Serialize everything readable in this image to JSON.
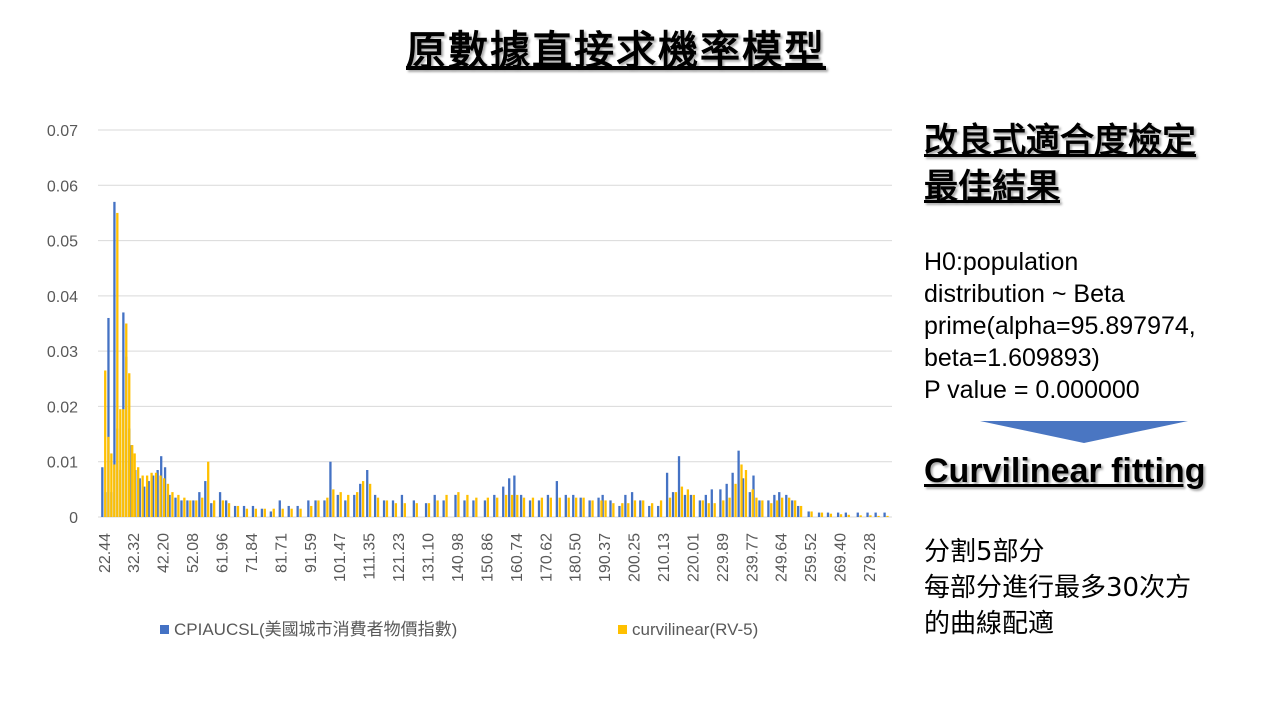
{
  "title": "原數據直接求機率模型",
  "right_panel": {
    "heading_line1": "改良式適合度檢定",
    "heading_line2": "最佳結果",
    "hypothesis_lines": [
      "H0:population",
      "distribution ~ Beta",
      "prime(alpha=95.897974,",
      "beta=1.609893)",
      "P value = 0.000000"
    ],
    "method": "Curvilinear fitting",
    "notes": [
      "分割5部分",
      "每部分進行最多30次方",
      "的曲線配適"
    ],
    "arrow_color": "#4a76c2"
  },
  "chart_data": {
    "type": "bar",
    "ylim": [
      0,
      0.07
    ],
    "y_ticks": [
      "0",
      "0.01",
      "0.02",
      "0.03",
      "0.04",
      "0.05",
      "0.06",
      "0.07"
    ],
    "x_tick_labels": [
      "22.44",
      "32.32",
      "42.20",
      "52.08",
      "61.96",
      "71.84",
      "81.71",
      "91.59",
      "101.47",
      "111.35",
      "121.23",
      "131.10",
      "140.98",
      "150.86",
      "160.74",
      "170.62",
      "180.50",
      "190.37",
      "200.25",
      "210.13",
      "220.01",
      "229.89",
      "239.77",
      "249.64",
      "259.52",
      "269.40",
      "279.28"
    ],
    "x_tick_values": [
      22.44,
      32.32,
      42.2,
      52.08,
      61.96,
      71.84,
      81.71,
      91.59,
      101.47,
      111.35,
      121.23,
      131.1,
      140.98,
      150.86,
      160.74,
      170.62,
      180.5,
      190.37,
      200.25,
      210.13,
      220.01,
      229.89,
      239.77,
      249.64,
      259.52,
      269.4,
      279.28
    ],
    "grid": true,
    "legend_position": "bottom",
    "series": [
      {
        "name": "CPIAUCSL(美國城市消費者物價指數)",
        "color": "#4472c4",
        "points": [
          [
            22.44,
            0.009
          ],
          [
            23.5,
            0.0045
          ],
          [
            24.5,
            0.036
          ],
          [
            25.5,
            0.0045
          ],
          [
            26.5,
            0.057
          ],
          [
            27.5,
            0.016
          ],
          [
            28.5,
            0.0085
          ],
          [
            29.5,
            0.037
          ],
          [
            30.5,
            0.029
          ],
          [
            31.5,
            0.016
          ],
          [
            32.32,
            0.013
          ],
          [
            33.5,
            0.0085
          ],
          [
            35,
            0.007
          ],
          [
            36.5,
            0.0055
          ],
          [
            38,
            0.0065
          ],
          [
            39.5,
            0.0075
          ],
          [
            41,
            0.0085
          ],
          [
            42.2,
            0.011
          ],
          [
            43.5,
            0.009
          ],
          [
            45,
            0.004
          ],
          [
            47,
            0.0035
          ],
          [
            49,
            0.003
          ],
          [
            51,
            0.003
          ],
          [
            53,
            0.003
          ],
          [
            55,
            0.0045
          ],
          [
            57,
            0.0065
          ],
          [
            59,
            0.0025
          ],
          [
            61.96,
            0.0045
          ],
          [
            64,
            0.003
          ],
          [
            67,
            0.002
          ],
          [
            70,
            0.002
          ],
          [
            73,
            0.002
          ],
          [
            76,
            0.0015
          ],
          [
            79,
            0.001
          ],
          [
            82,
            0.003
          ],
          [
            85,
            0.002
          ],
          [
            88,
            0.002
          ],
          [
            91.59,
            0.003
          ],
          [
            94,
            0.003
          ],
          [
            97,
            0.003
          ],
          [
            99,
            0.01
          ],
          [
            101.47,
            0.004
          ],
          [
            104,
            0.003
          ],
          [
            107,
            0.004
          ],
          [
            109,
            0.006
          ],
          [
            111.35,
            0.0085
          ],
          [
            114,
            0.004
          ],
          [
            117,
            0.003
          ],
          [
            120,
            0.003
          ],
          [
            123,
            0.004
          ],
          [
            127,
            0.003
          ],
          [
            131.1,
            0.0025
          ],
          [
            134,
            0.004
          ],
          [
            137,
            0.003
          ],
          [
            140.98,
            0.004
          ],
          [
            144,
            0.003
          ],
          [
            147,
            0.003
          ],
          [
            150.86,
            0.003
          ],
          [
            154,
            0.004
          ],
          [
            157,
            0.0055
          ],
          [
            159,
            0.007
          ],
          [
            160.74,
            0.0075
          ],
          [
            163,
            0.004
          ],
          [
            166,
            0.003
          ],
          [
            169,
            0.003
          ],
          [
            172,
            0.004
          ],
          [
            175,
            0.0065
          ],
          [
            178,
            0.004
          ],
          [
            180.5,
            0.004
          ],
          [
            183,
            0.0035
          ],
          [
            186,
            0.003
          ],
          [
            189,
            0.0035
          ],
          [
            190.37,
            0.004
          ],
          [
            193,
            0.003
          ],
          [
            196,
            0.002
          ],
          [
            198,
            0.004
          ],
          [
            200.25,
            0.0045
          ],
          [
            203,
            0.003
          ],
          [
            206,
            0.002
          ],
          [
            209,
            0.002
          ],
          [
            212,
            0.008
          ],
          [
            214,
            0.0045
          ],
          [
            216,
            0.011
          ],
          [
            218,
            0.004
          ],
          [
            220.01,
            0.004
          ],
          [
            223,
            0.003
          ],
          [
            225,
            0.004
          ],
          [
            227,
            0.005
          ],
          [
            229.89,
            0.005
          ],
          [
            232,
            0.006
          ],
          [
            234,
            0.008
          ],
          [
            236,
            0.012
          ],
          [
            237.5,
            0.007
          ],
          [
            239.77,
            0.0045
          ],
          [
            241,
            0.0075
          ],
          [
            243,
            0.003
          ],
          [
            246,
            0.003
          ],
          [
            248,
            0.004
          ],
          [
            249.64,
            0.0045
          ],
          [
            252,
            0.004
          ],
          [
            254,
            0.003
          ],
          [
            256,
            0.002
          ],
          [
            259.52,
            0.001
          ],
          [
            263,
            0.0008
          ],
          [
            266,
            0.0008
          ],
          [
            269.4,
            0.0008
          ],
          [
            272,
            0.0008
          ],
          [
            276,
            0.0008
          ],
          [
            279.28,
            0.0008
          ],
          [
            282,
            0.0008
          ],
          [
            285,
            0.0008
          ]
        ]
      },
      {
        "name": "curvilinear(RV-5)",
        "color": "#ffc000",
        "points": [
          [
            22.44,
            0.0265
          ],
          [
            23.5,
            0.0145
          ],
          [
            24.5,
            0.0115
          ],
          [
            25.5,
            0.0095
          ],
          [
            26.5,
            0.055
          ],
          [
            27.5,
            0.0195
          ],
          [
            28.5,
            0.0195
          ],
          [
            29.5,
            0.035
          ],
          [
            30.5,
            0.026
          ],
          [
            31.5,
            0.013
          ],
          [
            32.32,
            0.0115
          ],
          [
            33.5,
            0.009
          ],
          [
            35,
            0.0075
          ],
          [
            36.5,
            0.0075
          ],
          [
            38,
            0.008
          ],
          [
            39.5,
            0.008
          ],
          [
            41,
            0.0075
          ],
          [
            42.2,
            0.007
          ],
          [
            43.5,
            0.006
          ],
          [
            45,
            0.0045
          ],
          [
            47,
            0.004
          ],
          [
            49,
            0.0035
          ],
          [
            51,
            0.003
          ],
          [
            53,
            0.003
          ],
          [
            55,
            0.0035
          ],
          [
            57,
            0.01
          ],
          [
            59,
            0.003
          ],
          [
            61.96,
            0.003
          ],
          [
            64,
            0.0025
          ],
          [
            67,
            0.002
          ],
          [
            70,
            0.0015
          ],
          [
            73,
            0.0015
          ],
          [
            76,
            0.0015
          ],
          [
            79,
            0.0015
          ],
          [
            82,
            0.0015
          ],
          [
            85,
            0.0015
          ],
          [
            88,
            0.0015
          ],
          [
            91.59,
            0.002
          ],
          [
            94,
            0.003
          ],
          [
            97,
            0.0035
          ],
          [
            99,
            0.005
          ],
          [
            101.47,
            0.0045
          ],
          [
            104,
            0.004
          ],
          [
            107,
            0.0045
          ],
          [
            109,
            0.0065
          ],
          [
            111.35,
            0.006
          ],
          [
            114,
            0.0035
          ],
          [
            117,
            0.003
          ],
          [
            120,
            0.0025
          ],
          [
            123,
            0.0025
          ],
          [
            127,
            0.0025
          ],
          [
            131.1,
            0.0025
          ],
          [
            134,
            0.003
          ],
          [
            137,
            0.004
          ],
          [
            140.98,
            0.0045
          ],
          [
            144,
            0.004
          ],
          [
            147,
            0.0035
          ],
          [
            150.86,
            0.0035
          ],
          [
            154,
            0.0035
          ],
          [
            157,
            0.004
          ],
          [
            159,
            0.004
          ],
          [
            160.74,
            0.004
          ],
          [
            163,
            0.0035
          ],
          [
            166,
            0.0035
          ],
          [
            169,
            0.0035
          ],
          [
            172,
            0.0035
          ],
          [
            175,
            0.0035
          ],
          [
            178,
            0.0035
          ],
          [
            180.5,
            0.0035
          ],
          [
            183,
            0.0035
          ],
          [
            186,
            0.003
          ],
          [
            189,
            0.003
          ],
          [
            190.37,
            0.003
          ],
          [
            193,
            0.0025
          ],
          [
            196,
            0.0025
          ],
          [
            198,
            0.0025
          ],
          [
            200.25,
            0.003
          ],
          [
            203,
            0.003
          ],
          [
            206,
            0.0025
          ],
          [
            209,
            0.003
          ],
          [
            212,
            0.0035
          ],
          [
            214,
            0.0045
          ],
          [
            216,
            0.0055
          ],
          [
            218,
            0.005
          ],
          [
            220.01,
            0.004
          ],
          [
            223,
            0.003
          ],
          [
            225,
            0.0025
          ],
          [
            227,
            0.0025
          ],
          [
            229.89,
            0.003
          ],
          [
            232,
            0.0035
          ],
          [
            234,
            0.006
          ],
          [
            236,
            0.0095
          ],
          [
            237.5,
            0.0085
          ],
          [
            239.77,
            0.005
          ],
          [
            241,
            0.0035
          ],
          [
            243,
            0.003
          ],
          [
            246,
            0.0025
          ],
          [
            248,
            0.003
          ],
          [
            249.64,
            0.0035
          ],
          [
            252,
            0.0035
          ],
          [
            254,
            0.003
          ],
          [
            256,
            0.002
          ],
          [
            259.52,
            0.001
          ],
          [
            263,
            0.0008
          ],
          [
            266,
            0.0006
          ],
          [
            269.4,
            0.0005
          ],
          [
            272,
            0.0004
          ],
          [
            276,
            0.0003
          ],
          [
            279.28,
            0.0003
          ],
          [
            282,
            0.0002
          ],
          [
            285,
            0.0002
          ]
        ]
      }
    ]
  }
}
